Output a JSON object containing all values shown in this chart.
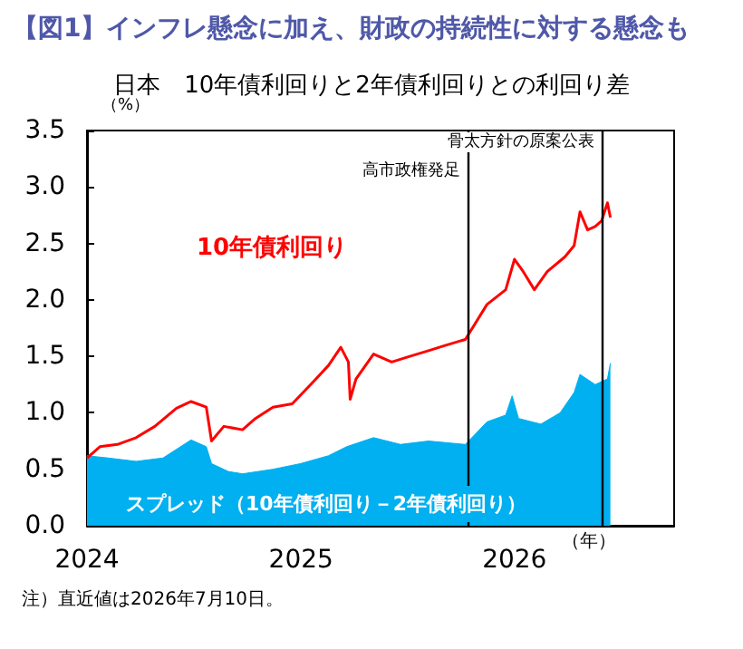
{
  "chart_data": {
    "type": "line",
    "title": "【図1】インフレ懸念に加え、財政の持続性に対する懸念も",
    "subtitle": "日本　10年債利回りと2年債利回りとの利回り差",
    "ylabel": "（%）",
    "xlabel": "（年）",
    "annotations": [
      "注）直近値は2026年7月10日。"
    ],
    "series": [
      {
        "name": "スプレッド（10年債利回り－2年債利回り）",
        "type": "area",
        "color": "#00b0f0",
        "x": [
          "2024-01-01",
          "2024-02-06",
          "2024-03-25",
          "2024-05-10",
          "2024-06-27",
          "2024-07-23",
          "2024-08-01",
          "2024-08-30",
          "2024-09-23",
          "2024-11-14",
          "2024-12-31",
          "2025-02-17",
          "2025-03-20",
          "2025-05-05",
          "2025-06-20",
          "2025-08-07",
          "2025-10-09",
          "2025-11-15",
          "2025-12-17",
          "2025-12-28",
          "2026-01-08",
          "2026-02-15",
          "2026-03-20",
          "2026-04-13",
          "2026-04-23",
          "2026-05-19",
          "2026-06-09",
          "2026-06-14"
        ],
        "values": [
          0.62,
          0.6,
          0.57,
          0.6,
          0.76,
          0.7,
          0.55,
          0.48,
          0.46,
          0.5,
          0.55,
          0.62,
          0.7,
          0.78,
          0.72,
          0.75,
          0.72,
          0.92,
          0.98,
          1.15,
          0.95,
          0.9,
          1.0,
          1.18,
          1.34,
          1.25,
          1.3,
          1.44
        ]
      },
      {
        "name": "10年債利回り",
        "type": "line",
        "color": "#ff0000",
        "x": [
          "2024-01-01",
          "2024-01-23",
          "2024-02-22",
          "2024-03-25",
          "2024-04-26",
          "2024-06-02",
          "2024-06-27",
          "2024-07-23",
          "2024-08-01",
          "2024-08-22",
          "2024-09-23",
          "2024-10-15",
          "2024-11-14",
          "2024-12-17",
          "2025-01-23",
          "2025-02-17",
          "2025-03-10",
          "2025-03-23",
          "2025-03-26",
          "2025-04-05",
          "2025-05-05",
          "2025-06-05",
          "2025-07-06",
          "2025-08-07",
          "2025-09-07",
          "2025-10-09",
          "2025-11-15",
          "2025-12-17",
          "2026-01-01",
          "2026-01-16",
          "2026-02-04",
          "2026-02-26",
          "2026-03-28",
          "2026-04-13",
          "2026-04-23",
          "2026-05-06",
          "2026-05-19",
          "2026-05-30",
          "2026-06-09",
          "2026-06-14"
        ],
        "values": [
          0.6,
          0.7,
          0.72,
          0.78,
          0.88,
          1.04,
          1.1,
          1.05,
          0.75,
          0.88,
          0.85,
          0.95,
          1.05,
          1.08,
          1.28,
          1.42,
          1.58,
          1.45,
          1.12,
          1.3,
          1.52,
          1.45,
          1.5,
          1.55,
          1.6,
          1.65,
          1.96,
          2.09,
          2.36,
          2.25,
          2.09,
          2.25,
          2.38,
          2.48,
          2.78,
          2.62,
          2.65,
          2.7,
          2.86,
          2.73
        ]
      }
    ],
    "xlim": [
      "2024-01-01",
      "2026-10-01"
    ],
    "xticks": [
      "2024",
      "2025",
      "2026"
    ],
    "ylim": [
      0,
      3.5
    ],
    "yticks": [
      {
        "value": 0,
        "label": "0.0"
      },
      {
        "value": 0.5,
        "label": "0.5"
      },
      {
        "value": 1,
        "label": "1.0"
      },
      {
        "value": 1.5,
        "label": "1.5"
      },
      {
        "value": 2,
        "label": "2.0"
      },
      {
        "value": 2.5,
        "label": "2.5"
      },
      {
        "value": 3,
        "label": "3.0"
      },
      {
        "value": 3.5,
        "label": "3.5"
      }
    ],
    "ref_lines": [
      {
        "axis": "x",
        "value": "2025-10-13",
        "label": "高市政権発足",
        "color": "#000000"
      },
      {
        "axis": "x",
        "value": "2026-05-30",
        "label": "骨太方針の原案公表",
        "color": "#000000"
      }
    ],
    "grid": false,
    "legend": false,
    "marker": "none",
    "line_style": "solid"
  }
}
